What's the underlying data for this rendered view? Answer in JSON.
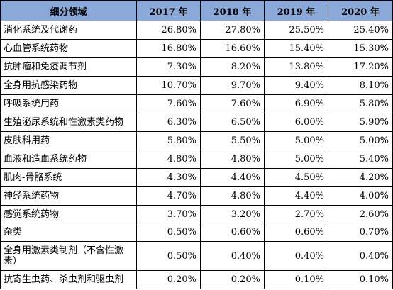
{
  "table": {
    "headers": [
      "细分领域",
      "2017 年",
      "2018 年",
      "2019 年",
      "2020 年"
    ],
    "rows": [
      [
        "消化系统及代谢药",
        "26.80%",
        "27.80%",
        "25.50%",
        "25.40%"
      ],
      [
        "心血管系统药物",
        "16.80%",
        "16.60%",
        "15.40%",
        "15.30%"
      ],
      [
        "抗肿瘤和免疫调节剂",
        "7.30%",
        "8.20%",
        "13.80%",
        "17.20%"
      ],
      [
        "全身用抗感染药物",
        "10.70%",
        "9.70%",
        "9.40%",
        "8.10%"
      ],
      [
        "呼吸系统用药",
        "7.60%",
        "7.60%",
        "6.90%",
        "5.80%"
      ],
      [
        "生殖泌尿系统和性激素类药物",
        "6.30%",
        "6.50%",
        "6.00%",
        "5.90%"
      ],
      [
        "皮肤科用药",
        "5.80%",
        "5.50%",
        "5.00%",
        "5.00%"
      ],
      [
        "血液和造血系统药物",
        "4.80%",
        "4.80%",
        "5.00%",
        "5.40%"
      ],
      [
        "肌肉-骨骼系统",
        "4.30%",
        "4.40%",
        "4.50%",
        "4.20%"
      ],
      [
        "神经系统药物",
        "4.70%",
        "4.80%",
        "4.40%",
        "4.00%"
      ],
      [
        "感觉系统药物",
        "3.70%",
        "3.20%",
        "2.70%",
        "2.60%"
      ],
      [
        "杂类",
        "0.50%",
        "0.60%",
        "0.60%",
        "0.70%"
      ],
      [
        "全身用激素类制剂（不含性激素）",
        "0.50%",
        "0.40%",
        "0.40%",
        "0.40%"
      ],
      [
        "抗寄生虫药、杀虫剂和驱虫剂",
        "0.20%",
        "0.20%",
        "0.10%",
        "0.10%"
      ]
    ]
  },
  "colors": {
    "header_bg": "#8aa9d9",
    "border": "#000000",
    "text": "#000000"
  }
}
